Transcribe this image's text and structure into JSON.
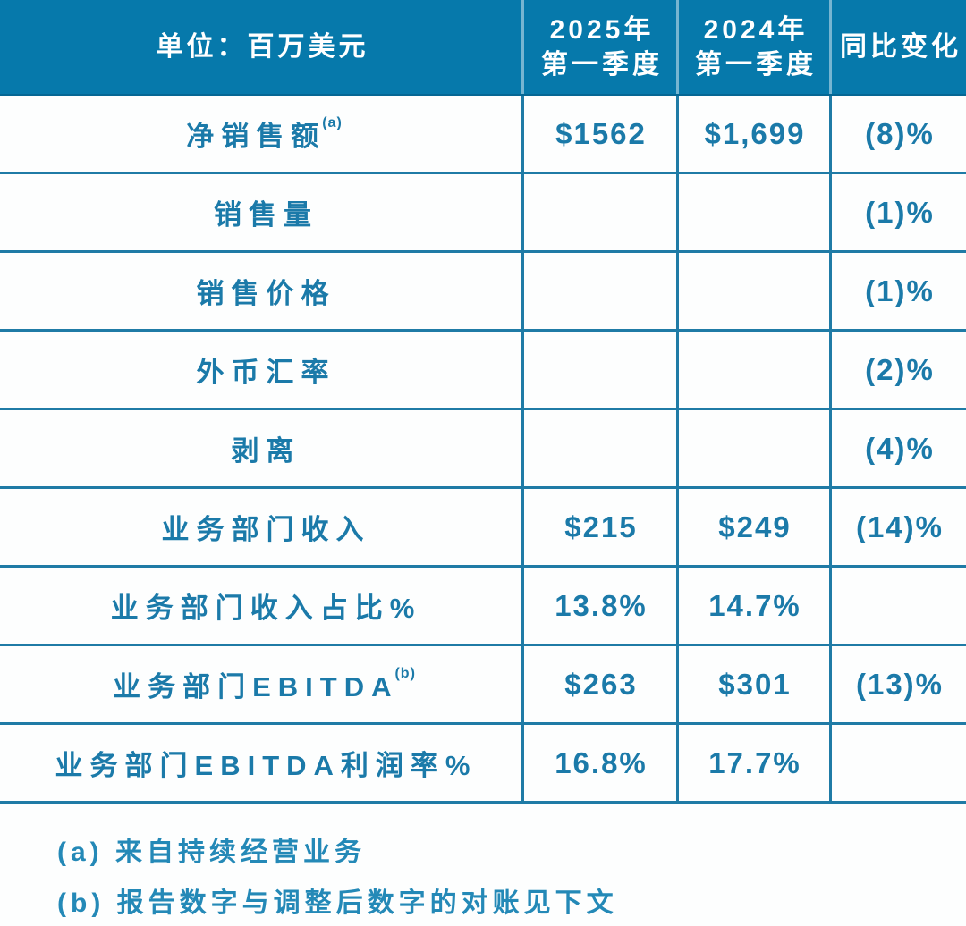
{
  "colors": {
    "header_bg": "#0679ab",
    "grid_line": "#1f7ba6",
    "body_text": "#1b7aa9",
    "footnote_text": "#2489b7",
    "background": "#fdfefe"
  },
  "chart_data": {
    "type": "table",
    "unit_label": "单位：百万美元",
    "columns": [
      "2025年\n第一季度",
      "2024年\n第一季度",
      "同比变化"
    ],
    "rows": [
      {
        "label": "净销售额",
        "sup": "(a)",
        "q1_2025": "$1562",
        "q1_2024": "$1,699",
        "yoy_change": "(8)%"
      },
      {
        "label": "销售量",
        "sup": "",
        "q1_2025": "",
        "q1_2024": "",
        "yoy_change": "(1)%"
      },
      {
        "label": "销售价格",
        "sup": "",
        "q1_2025": "",
        "q1_2024": "",
        "yoy_change": "(1)%"
      },
      {
        "label": "外币汇率",
        "sup": "",
        "q1_2025": "",
        "q1_2024": "",
        "yoy_change": "(2)%"
      },
      {
        "label": "剥离",
        "sup": "",
        "q1_2025": "",
        "q1_2024": "",
        "yoy_change": "(4)%"
      },
      {
        "label": "业务部门收入",
        "sup": "",
        "q1_2025": "$215",
        "q1_2024": "$249",
        "yoy_change": "(14)%"
      },
      {
        "label": "业务部门收入占比%",
        "sup": "",
        "q1_2025": "13.8%",
        "q1_2024": "14.7%",
        "yoy_change": ""
      },
      {
        "label": "业务部门EBITDA",
        "sup": "(b)",
        "q1_2025": "$263",
        "q1_2024": "$301",
        "yoy_change": "(13)%"
      },
      {
        "label": "业务部门EBITDA利润率%",
        "sup": "",
        "q1_2025": "16.8%",
        "q1_2024": "17.7%",
        "yoy_change": ""
      }
    ],
    "footnotes": [
      "(a) 来自持续经营业务",
      "(b) 报告数字与调整后数字的对账见下文"
    ]
  }
}
